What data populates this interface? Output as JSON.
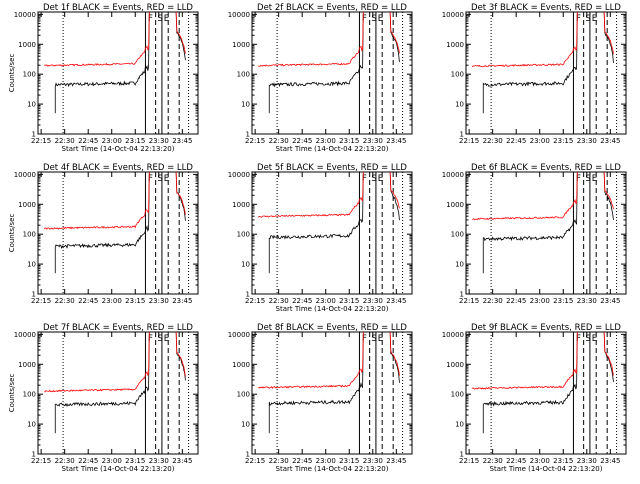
{
  "chart_data": [
    {
      "type": "line",
      "title": "Det 1f BLACK = Events, RED = LLD",
      "ylabel": "Counts/sec",
      "xlabel": "Start Time (14-Oct-04 22:13:20)",
      "annotations": [
        "F",
        "S",
        "E"
      ],
      "red_base": 200,
      "black_base": 45
    },
    {
      "type": "line",
      "title": "Det 2f BLACK = Events, RED = LLD",
      "ylabel": "",
      "xlabel": "Start Time (14-Oct-04 22:13:20)",
      "annotations": [
        "F",
        "S",
        "E"
      ],
      "red_base": 200,
      "black_base": 45
    },
    {
      "type": "line",
      "title": "Det 3f BLACK = Events, RED = LLD",
      "ylabel": "",
      "xlabel": "",
      "annotations": [
        "F",
        "S",
        "E"
      ],
      "red_base": 190,
      "black_base": 45
    },
    {
      "type": "line",
      "title": "Det 4f BLACK = Events, RED = LLD",
      "ylabel": "Counts/sec",
      "xlabel": "",
      "annotations": [
        "F",
        "S",
        "E"
      ],
      "red_base": 160,
      "black_base": 40
    },
    {
      "type": "line",
      "title": "Det 5f BLACK = Events, RED = LLD",
      "ylabel": "",
      "xlabel": "Start Time (14-Oct-04 22:13:20)",
      "annotations": [
        "F",
        "S",
        "E"
      ],
      "red_base": 400,
      "black_base": 80
    },
    {
      "type": "line",
      "title": "Det 6f BLACK = Events, RED = LLD",
      "ylabel": "",
      "xlabel": "",
      "annotations": [
        "F",
        "S",
        "E"
      ],
      "red_base": 330,
      "black_base": 70
    },
    {
      "type": "line",
      "title": "Det 7f BLACK = Events, RED = LLD",
      "ylabel": "Counts/sec",
      "xlabel": "Start Time (14-Oct-04 22:13:20)",
      "annotations": [
        "F",
        "S",
        "E"
      ],
      "red_base": 130,
      "black_base": 45
    },
    {
      "type": "line",
      "title": "Det 8f BLACK = Events, RED = LLD",
      "ylabel": "",
      "xlabel": "Start Time (14-Oct-04 22:13:20)",
      "annotations": [
        "F",
        "S",
        "E"
      ],
      "red_base": 170,
      "black_base": 50
    },
    {
      "type": "line",
      "title": "Det 9f BLACK = Events, RED = LLD",
      "ylabel": "",
      "xlabel": "Start Time (14-Oct-04 22:13:20)",
      "annotations": [
        "F",
        "S",
        "E"
      ],
      "red_base": 160,
      "black_base": 48
    }
  ],
  "axes": {
    "x_ticks": [
      "22:15",
      "22:30",
      "22:45",
      "23:00",
      "23:15",
      "23:30",
      "23:45"
    ],
    "y_ticks": [
      "1",
      "10",
      "100",
      "1000",
      "10000"
    ],
    "y_scale": "log",
    "ylim": [
      1,
      12000
    ]
  },
  "colors": {
    "events": "#000000",
    "lld": "#ff0000"
  }
}
